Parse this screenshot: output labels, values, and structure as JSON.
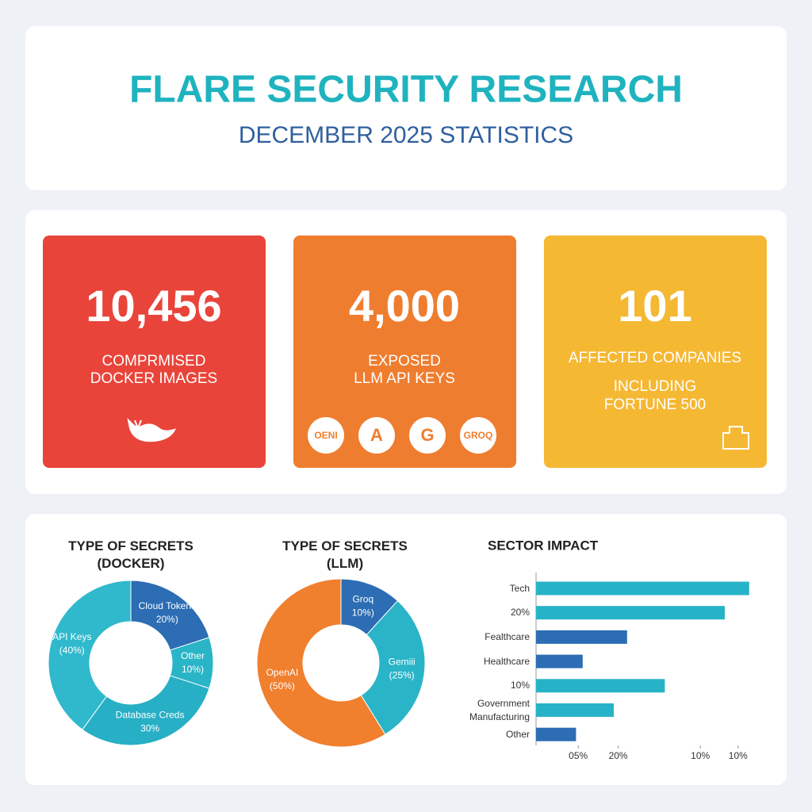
{
  "header": {
    "title": "FLARE SECURITY RESEARCH",
    "subtitle": "DECEMBER 2025 STATISTICS"
  },
  "cards": [
    {
      "value": "10,456",
      "lines": [
        "COMPRMISED",
        "DOCKER IMAGES"
      ],
      "color": "#e9443a"
    },
    {
      "value": "4,000",
      "lines": [
        "EXPOSED",
        "LLM API KEYS"
      ],
      "logos": [
        "OENI",
        "A",
        "G",
        "GROQ"
      ],
      "color": "#ef7d2f"
    },
    {
      "value": "101",
      "lines": [
        "AFFECTED COMPANIES"
      ],
      "sub_lines": [
        "INCLUDING",
        "FORTUNE 500"
      ],
      "color": "#f5b833"
    }
  ],
  "chart_data": [
    {
      "type": "pie",
      "title": "TYPE OF SECRETS (DOCKER)",
      "categories": [
        "Cloud Tokens",
        "Other",
        "Database Creds",
        "API Keys"
      ],
      "values": [
        20,
        10,
        30,
        40
      ],
      "value_labels": [
        "20%)",
        "10%)",
        "30%",
        "(40%)"
      ],
      "colors": [
        "#2c6db4",
        "#2ab4c8",
        "#27afc5",
        "#30b9cd"
      ]
    },
    {
      "type": "pie",
      "title": "TYPE OF SECRETS (LLM)",
      "categories": [
        "Groq",
        "Gemiii",
        "OpenAI"
      ],
      "values": [
        10,
        25,
        50
      ],
      "value_labels": [
        "10%)",
        "(25%)",
        "(50%)"
      ],
      "colors": [
        "#2c6db4",
        "#2ab4c8",
        "#f07f2e"
      ]
    },
    {
      "type": "bar",
      "title": "SECTOR IMPACT",
      "categories": [
        "Tech",
        "20%",
        "Fealthcare",
        "Healthcare",
        "10%",
        "Government Manufacturing",
        "Other"
      ],
      "values": [
        96,
        85,
        41,
        21,
        58,
        35,
        18
      ],
      "colors": [
        "#27b3c7",
        "#27b3c7",
        "#2c6db4",
        "#2c6db4",
        "#27b3c7",
        "#27b3c7",
        "#2c6db4"
      ],
      "xlim": [
        0,
        100
      ],
      "xticks": [
        {
          "value": 19,
          "label": "05%"
        },
        {
          "value": 37,
          "label": "20%"
        },
        {
          "value": 74,
          "label": "10%"
        },
        {
          "value": 91,
          "label": "10%"
        }
      ]
    }
  ]
}
